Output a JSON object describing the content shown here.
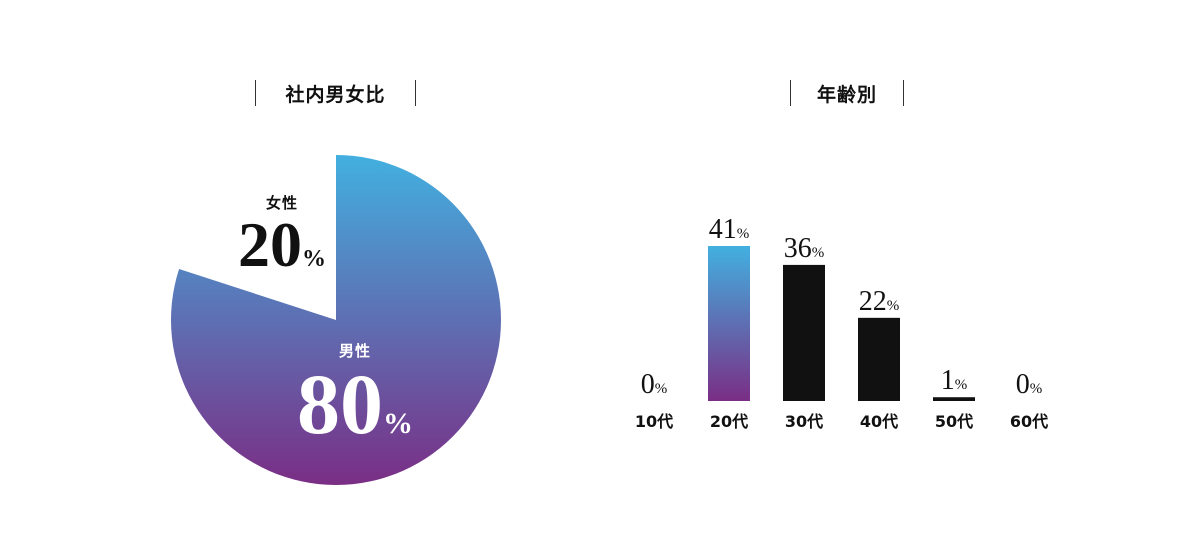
{
  "pie_title": "社内男女比",
  "bar_title": "年齢別",
  "colors": {
    "gradient_top": "#42b0e0",
    "gradient_bottom": "#7a2e85",
    "bar_dark": "#111111",
    "text": "#111111"
  },
  "pie_labels": {
    "female": {
      "name": "女性",
      "value": "20",
      "unit": "%"
    },
    "male": {
      "name": "男性",
      "value": "80",
      "unit": "%"
    }
  },
  "chart_data": [
    {
      "type": "pie",
      "title": "社内男女比",
      "labels": [
        "男性",
        "女性"
      ],
      "values": [
        80,
        20
      ],
      "unit": "%"
    },
    {
      "type": "bar",
      "title": "年齢別",
      "categories": [
        "10代",
        "20代",
        "30代",
        "40代",
        "50代",
        "60代"
      ],
      "values": [
        0,
        41,
        36,
        22,
        1,
        0
      ],
      "unit": "%",
      "highlight_category": "20代"
    }
  ]
}
